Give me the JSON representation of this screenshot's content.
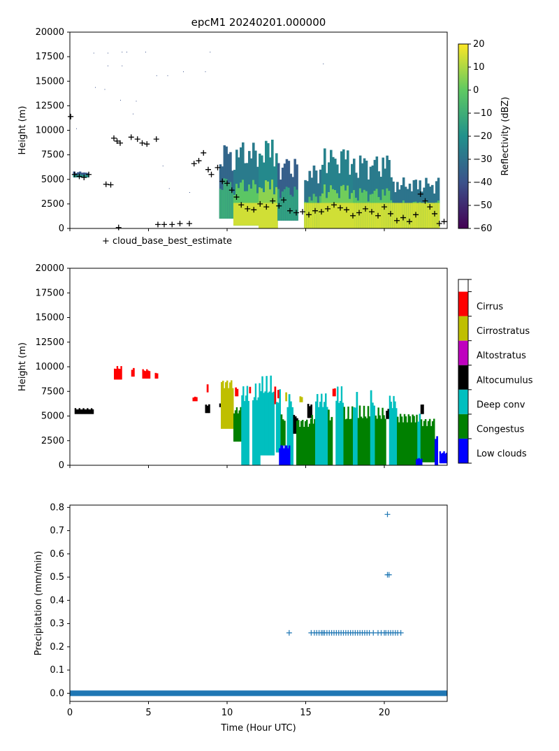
{
  "title": "epcM1 20240201.000000",
  "chart_data": [
    {
      "type": "heatmap",
      "panel": "reflectivity",
      "ylabel": "Height (m)",
      "xlim": [
        0,
        24
      ],
      "ylim": [
        0,
        20000
      ],
      "y_ticks": [
        0,
        2500,
        5000,
        7500,
        10000,
        12500,
        15000,
        17500,
        20000
      ],
      "x_ticks": [
        0,
        5,
        10,
        15,
        20
      ],
      "colorbar": {
        "label": "Reflectivity (dBZ)",
        "range": [
          -60,
          20
        ],
        "ticks": [
          20,
          10,
          0,
          -10,
          -20,
          -30,
          -40,
          -50,
          -60
        ],
        "colormap": [
          "#440154",
          "#3b528b",
          "#21918c",
          "#5ec962",
          "#fde725"
        ]
      },
      "legend_label": "+ cloud_base_best_estimate",
      "legend_placement": "below axes, left",
      "cloud_regions": [
        {
          "x0": 0.2,
          "x1": 1.2,
          "ytop": 5800,
          "ybot": 5200,
          "level": 0.5
        },
        {
          "x0": 9.5,
          "x1": 10.4,
          "ytop": 8500,
          "ybot": 1000,
          "level": 0.6
        },
        {
          "x0": 10.4,
          "x1": 12.0,
          "ytop": 8800,
          "ybot": 300,
          "level": 0.75
        },
        {
          "x0": 12.0,
          "x1": 13.2,
          "ytop": 9200,
          "ybot": 0,
          "level": 0.85
        },
        {
          "x0": 13.2,
          "x1": 14.5,
          "ytop": 7200,
          "ybot": 800,
          "level": 0.55
        },
        {
          "x0": 14.9,
          "x1": 16.0,
          "ytop": 6500,
          "ybot": 0,
          "level": 0.7
        },
        {
          "x0": 16.0,
          "x1": 18.0,
          "ytop": 8200,
          "ybot": 0,
          "level": 0.8
        },
        {
          "x0": 18.0,
          "x1": 20.5,
          "ytop": 7500,
          "ybot": 0,
          "level": 0.75
        },
        {
          "x0": 20.5,
          "x1": 23.5,
          "ytop": 5200,
          "ybot": 0,
          "level": 0.7
        }
      ],
      "cloud_base_best_estimate": [
        [
          0.05,
          11400
        ],
        [
          0.3,
          5500
        ],
        [
          0.6,
          5300
        ],
        [
          0.9,
          5200
        ],
        [
          1.2,
          5500
        ],
        [
          2.3,
          4500
        ],
        [
          2.6,
          4450
        ],
        [
          2.8,
          9200
        ],
        [
          3.0,
          8900
        ],
        [
          3.2,
          8700
        ],
        [
          3.9,
          9300
        ],
        [
          4.3,
          9100
        ],
        [
          4.6,
          8700
        ],
        [
          4.9,
          8600
        ],
        [
          5.5,
          9100
        ],
        [
          3.1,
          100
        ],
        [
          5.6,
          400
        ],
        [
          6.0,
          400
        ],
        [
          6.5,
          400
        ],
        [
          7.0,
          500
        ],
        [
          7.6,
          500
        ],
        [
          7.9,
          6600
        ],
        [
          8.2,
          6900
        ],
        [
          8.5,
          7700
        ],
        [
          8.8,
          6000
        ],
        [
          9.0,
          5500
        ],
        [
          9.4,
          6200
        ],
        [
          9.7,
          4800
        ],
        [
          10.0,
          4600
        ],
        [
          10.3,
          3900
        ],
        [
          10.6,
          3200
        ],
        [
          10.9,
          2400
        ],
        [
          11.3,
          2000
        ],
        [
          11.7,
          1900
        ],
        [
          12.1,
          2500
        ],
        [
          12.5,
          2200
        ],
        [
          12.9,
          2800
        ],
        [
          13.3,
          2300
        ],
        [
          13.6,
          2900
        ],
        [
          14.0,
          1800
        ],
        [
          14.4,
          1600
        ],
        [
          14.8,
          1700
        ],
        [
          15.2,
          1400
        ],
        [
          15.6,
          1800
        ],
        [
          16.0,
          1700
        ],
        [
          16.4,
          2000
        ],
        [
          16.8,
          2400
        ],
        [
          17.2,
          2100
        ],
        [
          17.6,
          1900
        ],
        [
          18.0,
          1300
        ],
        [
          18.4,
          1600
        ],
        [
          18.8,
          2000
        ],
        [
          19.2,
          1700
        ],
        [
          19.6,
          1300
        ],
        [
          20.0,
          2200
        ],
        [
          20.4,
          1500
        ],
        [
          20.8,
          800
        ],
        [
          21.2,
          1100
        ],
        [
          21.6,
          700
        ],
        [
          22.0,
          1400
        ],
        [
          22.3,
          3500
        ],
        [
          22.6,
          2800
        ],
        [
          22.9,
          2200
        ],
        [
          23.2,
          1500
        ],
        [
          23.5,
          500
        ],
        [
          23.8,
          700
        ]
      ],
      "specks": [
        [
          1.5,
          17900
        ],
        [
          2.4,
          17900
        ],
        [
          3.3,
          18000
        ],
        [
          3.6,
          18000
        ],
        [
          4.8,
          18000
        ],
        [
          8.9,
          18000
        ],
        [
          2.4,
          16600
        ],
        [
          3.3,
          16600
        ],
        [
          7.2,
          16000
        ],
        [
          8.6,
          16000
        ],
        [
          5.5,
          15600
        ],
        [
          6.2,
          15600
        ],
        [
          1.6,
          14400
        ],
        [
          2.2,
          14200
        ],
        [
          3.2,
          13100
        ],
        [
          4.2,
          13000
        ],
        [
          4.0,
          11700
        ],
        [
          0.4,
          10200
        ],
        [
          16.1,
          16800
        ],
        [
          6.3,
          4100
        ],
        [
          7.6,
          3700
        ],
        [
          5.9,
          6400
        ]
      ]
    },
    {
      "type": "heatmap",
      "panel": "cloud_type",
      "ylabel": "Height (m)",
      "xlim": [
        0,
        24
      ],
      "ylim": [
        0,
        20000
      ],
      "y_ticks": [
        0,
        2500,
        5000,
        7500,
        10000,
        12500,
        15000,
        17500,
        20000
      ],
      "x_ticks": [
        0,
        5,
        10,
        15,
        20
      ],
      "categories": [
        "Cirrus",
        "Cirrostratus",
        "Altostratus",
        "Altocumulus",
        "Deep conv",
        "Congestus",
        "Low clouds"
      ],
      "category_colors": [
        "#ff0000",
        "#bfbf00",
        "#bf00bf",
        "#000000",
        "#00bfbf",
        "#008000",
        "#0000ff"
      ],
      "regions": [
        {
          "cls": 3,
          "x0": 0.3,
          "x1": 1.5,
          "ytop": 5800,
          "ybot": 5200
        },
        {
          "cls": 0,
          "x0": 2.8,
          "x1": 3.3,
          "ytop": 10100,
          "ybot": 8700
        },
        {
          "cls": 0,
          "x0": 3.9,
          "x1": 4.1,
          "ytop": 9900,
          "ybot": 9000
        },
        {
          "cls": 0,
          "x0": 4.6,
          "x1": 5.1,
          "ytop": 9800,
          "ybot": 8800
        },
        {
          "cls": 0,
          "x0": 5.4,
          "x1": 5.6,
          "ytop": 9500,
          "ybot": 8800
        },
        {
          "cls": 0,
          "x0": 7.8,
          "x1": 8.1,
          "ytop": 7000,
          "ybot": 6500
        },
        {
          "cls": 0,
          "x0": 8.7,
          "x1": 8.8,
          "ytop": 8300,
          "ybot": 7400
        },
        {
          "cls": 3,
          "x0": 8.6,
          "x1": 8.9,
          "ytop": 6300,
          "ybot": 5300
        },
        {
          "cls": 3,
          "x0": 9.5,
          "x1": 9.6,
          "ytop": 6400,
          "ybot": 5900
        },
        {
          "cls": 1,
          "x0": 9.6,
          "x1": 10.4,
          "ytop": 9200,
          "ybot": 3700
        },
        {
          "cls": 0,
          "x0": 10.5,
          "x1": 10.7,
          "ytop": 8000,
          "ybot": 7000
        },
        {
          "cls": 5,
          "x0": 10.4,
          "x1": 10.9,
          "ytop": 6200,
          "ybot": 2400
        },
        {
          "cls": 4,
          "x0": 10.9,
          "x1": 11.4,
          "ytop": 8600,
          "ybot": 0
        },
        {
          "cls": 0,
          "x0": 11.4,
          "x1": 11.5,
          "ytop": 8000,
          "ybot": 7300
        },
        {
          "cls": 4,
          "x0": 11.6,
          "x1": 12.1,
          "ytop": 8600,
          "ybot": 0
        },
        {
          "cls": 4,
          "x0": 12.1,
          "x1": 13.0,
          "ytop": 9200,
          "ybot": 1000
        },
        {
          "cls": 0,
          "x0": 13.0,
          "x1": 13.1,
          "ytop": 8000,
          "ybot": 6200
        },
        {
          "cls": 4,
          "x0": 13.1,
          "x1": 13.4,
          "ytop": 7800,
          "ybot": 1300
        },
        {
          "cls": 0,
          "x0": 13.2,
          "x1": 13.3,
          "ytop": 7900,
          "ybot": 6800
        },
        {
          "cls": 5,
          "x0": 13.4,
          "x1": 13.7,
          "ytop": 5300,
          "ybot": 2000
        },
        {
          "cls": 1,
          "x0": 13.7,
          "x1": 13.8,
          "ytop": 7600,
          "ybot": 6500
        },
        {
          "cls": 4,
          "x0": 13.8,
          "x1": 14.2,
          "ytop": 7800,
          "ybot": 0
        },
        {
          "cls": 3,
          "x0": 14.2,
          "x1": 14.5,
          "ytop": 5300,
          "ybot": 3200
        },
        {
          "cls": 1,
          "x0": 14.6,
          "x1": 14.8,
          "ytop": 7100,
          "ybot": 6400
        },
        {
          "cls": 6,
          "x0": 13.3,
          "x1": 14.0,
          "ytop": 2300,
          "ybot": 0
        },
        {
          "cls": 5,
          "x0": 14.4,
          "x1": 15.2,
          "ytop": 5200,
          "ybot": 0
        },
        {
          "cls": 3,
          "x0": 15.1,
          "x1": 15.4,
          "ytop": 6400,
          "ybot": 4800
        },
        {
          "cls": 5,
          "x0": 15.2,
          "x1": 15.6,
          "ytop": 5600,
          "ybot": 0
        },
        {
          "cls": 4,
          "x0": 15.6,
          "x1": 16.4,
          "ytop": 7800,
          "ybot": 0
        },
        {
          "cls": 5,
          "x0": 16.4,
          "x1": 16.7,
          "ytop": 6000,
          "ybot": 0
        },
        {
          "cls": 0,
          "x0": 16.7,
          "x1": 16.9,
          "ytop": 8000,
          "ybot": 7000
        },
        {
          "cls": 4,
          "x0": 16.9,
          "x1": 17.4,
          "ytop": 8200,
          "ybot": 0
        },
        {
          "cls": 5,
          "x0": 17.4,
          "x1": 18.0,
          "ytop": 6000,
          "ybot": 0
        },
        {
          "cls": 4,
          "x0": 18.0,
          "x1": 18.3,
          "ytop": 7500,
          "ybot": 0
        },
        {
          "cls": 5,
          "x0": 18.3,
          "x1": 19.1,
          "ytop": 6200,
          "ybot": 0
        },
        {
          "cls": 4,
          "x0": 19.1,
          "x1": 19.4,
          "ytop": 7900,
          "ybot": 0
        },
        {
          "cls": 5,
          "x0": 19.4,
          "x1": 20.1,
          "ytop": 6200,
          "ybot": 0
        },
        {
          "cls": 3,
          "x0": 20.1,
          "x1": 20.3,
          "ytop": 5800,
          "ybot": 4700
        },
        {
          "cls": 4,
          "x0": 20.3,
          "x1": 20.8,
          "ytop": 7700,
          "ybot": 0
        },
        {
          "cls": 5,
          "x0": 20.8,
          "x1": 22.1,
          "ytop": 5800,
          "ybot": 0
        },
        {
          "cls": 4,
          "x0": 22.1,
          "x1": 22.3,
          "ytop": 5900,
          "ybot": 0
        },
        {
          "cls": 3,
          "x0": 22.3,
          "x1": 22.5,
          "ytop": 6300,
          "ybot": 5200
        },
        {
          "cls": 5,
          "x0": 22.3,
          "x1": 23.2,
          "ytop": 5200,
          "ybot": 300
        },
        {
          "cls": 6,
          "x0": 22.0,
          "x1": 22.4,
          "ytop": 800,
          "ybot": 0
        },
        {
          "cls": 6,
          "x0": 23.2,
          "x1": 23.4,
          "ytop": 3200,
          "ybot": 0
        },
        {
          "cls": 6,
          "x0": 23.5,
          "x1": 24.0,
          "ytop": 1500,
          "ybot": 200
        }
      ]
    },
    {
      "type": "scatter",
      "panel": "precipitation",
      "xlabel": "Time (Hour UTC)",
      "ylabel": "Precipitation (mm/min)",
      "xlim": [
        0,
        24
      ],
      "ylim": [
        -0.035,
        0.81
      ],
      "x_ticks": [
        0,
        5,
        10,
        15,
        20
      ],
      "y_ticks": [
        0.0,
        0.1,
        0.2,
        0.3,
        0.4,
        0.5,
        0.6,
        0.7,
        0.8
      ],
      "marker_color": "#1f77b4",
      "baseline_value": 0.0,
      "points": [
        [
          13.95,
          0.26
        ],
        [
          15.35,
          0.26
        ],
        [
          15.55,
          0.26
        ],
        [
          15.7,
          0.26
        ],
        [
          15.85,
          0.26
        ],
        [
          16.0,
          0.26
        ],
        [
          16.1,
          0.26
        ],
        [
          16.2,
          0.26
        ],
        [
          16.35,
          0.26
        ],
        [
          16.5,
          0.26
        ],
        [
          16.65,
          0.26
        ],
        [
          16.8,
          0.26
        ],
        [
          16.95,
          0.26
        ],
        [
          17.1,
          0.26
        ],
        [
          17.25,
          0.26
        ],
        [
          17.4,
          0.26
        ],
        [
          17.55,
          0.26
        ],
        [
          17.7,
          0.26
        ],
        [
          17.85,
          0.26
        ],
        [
          18.0,
          0.26
        ],
        [
          18.15,
          0.26
        ],
        [
          18.3,
          0.26
        ],
        [
          18.45,
          0.26
        ],
        [
          18.6,
          0.26
        ],
        [
          18.75,
          0.26
        ],
        [
          18.9,
          0.26
        ],
        [
          19.05,
          0.26
        ],
        [
          19.3,
          0.26
        ],
        [
          19.6,
          0.26
        ],
        [
          19.8,
          0.26
        ],
        [
          20.0,
          0.26
        ],
        [
          20.1,
          0.26
        ],
        [
          20.25,
          0.26
        ],
        [
          20.4,
          0.26
        ],
        [
          20.55,
          0.26
        ],
        [
          20.7,
          0.26
        ],
        [
          20.85,
          0.26
        ],
        [
          21.05,
          0.26
        ],
        [
          20.2,
          0.51
        ],
        [
          20.3,
          0.51
        ],
        [
          20.2,
          0.77
        ]
      ]
    }
  ]
}
